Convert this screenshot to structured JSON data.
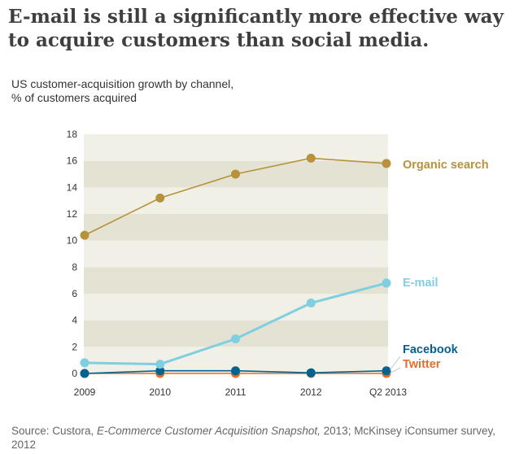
{
  "chart_data": {
    "type": "line",
    "title": "E-mail is still a significantly more effective way to acquire customers than social media.",
    "subtitle_lines": [
      "US customer-acquisition growth by channel,",
      "% of customers acquired"
    ],
    "categories": [
      "2009",
      "2010",
      "2011",
      "2012",
      "Q2 2013"
    ],
    "ylim": [
      0,
      18
    ],
    "yticks": [
      0,
      2,
      4,
      6,
      8,
      10,
      12,
      14,
      16,
      18
    ],
    "grid": "alternating horizontal bands",
    "legend": "right, labels at line ends",
    "series": [
      {
        "name": "Organic search",
        "color": "#b8923a",
        "values": [
          10.4,
          13.2,
          15.0,
          16.2,
          15.8
        ]
      },
      {
        "name": "E-mail",
        "color": "#7fcfe0",
        "values": [
          0.8,
          0.7,
          2.6,
          5.3,
          6.8
        ]
      },
      {
        "name": "Facebook",
        "color": "#03628f",
        "values": [
          0.0,
          0.2,
          0.2,
          0.05,
          0.2
        ]
      },
      {
        "name": "Twitter",
        "color": "#e0712c",
        "values": [
          0.0,
          0.0,
          0.0,
          0.0,
          0.0
        ]
      }
    ]
  },
  "source_prefix": "Source: Custora, ",
  "source_italic": "E-Commerce Customer Acquisition Snapshot,",
  "source_suffix": " 2013; McKinsey iConsumer survey, 2012"
}
